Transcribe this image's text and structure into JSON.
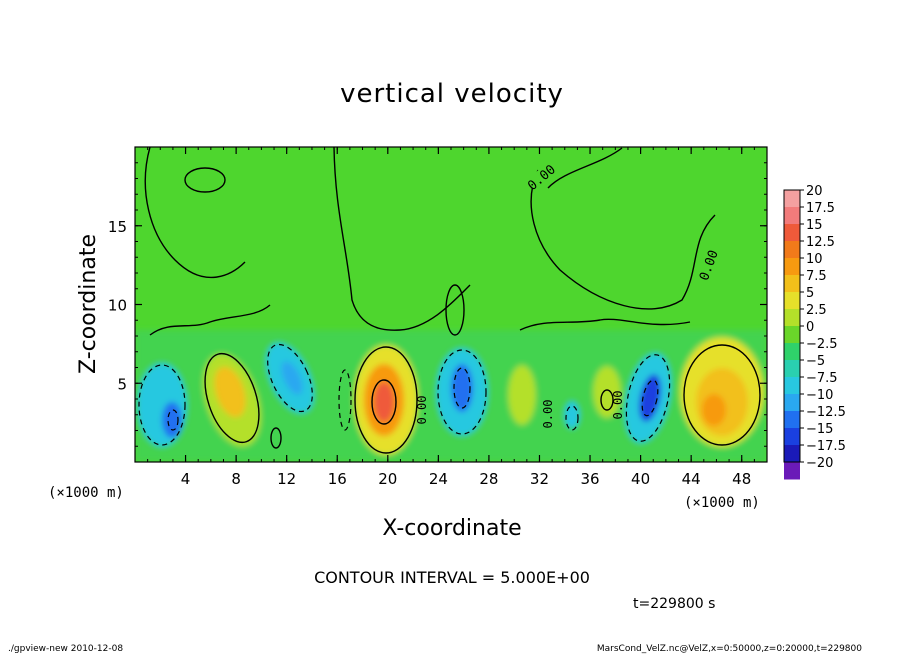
{
  "chart_data": {
    "type": "heatmap",
    "title": "vertical velocity",
    "xlabel": "X-coordinate",
    "ylabel": "Z-coordinate",
    "x_units": "(×1000 m)",
    "y_units": "(×1000 m)",
    "xlim": [
      0,
      50
    ],
    "ylim": [
      0,
      20
    ],
    "xticks": [
      4,
      8,
      12,
      16,
      20,
      24,
      28,
      32,
      36,
      40,
      44,
      48
    ],
    "yticks": [
      5,
      10,
      15
    ],
    "contour_interval_text": "CONTOUR INTERVAL = 5.000E+00",
    "contour_label": "0.00",
    "time_text": "t=229800 s",
    "colorbar": {
      "levels": [
        20,
        17.5,
        15,
        12.5,
        10,
        7.5,
        5,
        2.5,
        0,
        -2.5,
        -5,
        -7.5,
        -10,
        -12.5,
        -15,
        -17.5,
        -20
      ],
      "colors": [
        "#f4a0a0",
        "#f27b7b",
        "#ef5a3a",
        "#f17a1a",
        "#f79a10",
        "#f2c01a",
        "#e6e02a",
        "#b4e02a",
        "#6ad62a",
        "#2fd26a",
        "#2ad0b0",
        "#28c8e0",
        "#2aa8f0",
        "#2070f0",
        "#1a40e0",
        "#1a1ab8",
        "#6a1ab8"
      ]
    },
    "cells": [
      {
        "x": 3,
        "z": 2.8,
        "value": -9
      },
      {
        "x": 7.5,
        "z": 4,
        "value": 6
      },
      {
        "x": 11.5,
        "z": 5.5,
        "value": -6
      },
      {
        "x": 20,
        "z": 3.8,
        "value": 12
      },
      {
        "x": 25.8,
        "z": 4.6,
        "value": -11
      },
      {
        "x": 30.5,
        "z": 5,
        "value": 3
      },
      {
        "x": 37.5,
        "z": 3.5,
        "value": 5
      },
      {
        "x": 40.5,
        "z": 3.8,
        "value": -13
      },
      {
        "x": 46,
        "z": 3.5,
        "value": 8
      }
    ]
  },
  "footer": {
    "left": "./gpview-new  2010-12-08",
    "right": "MarsCond_VelZ.nc@VelZ,x=0:50000,z=0:20000,t=229800"
  }
}
